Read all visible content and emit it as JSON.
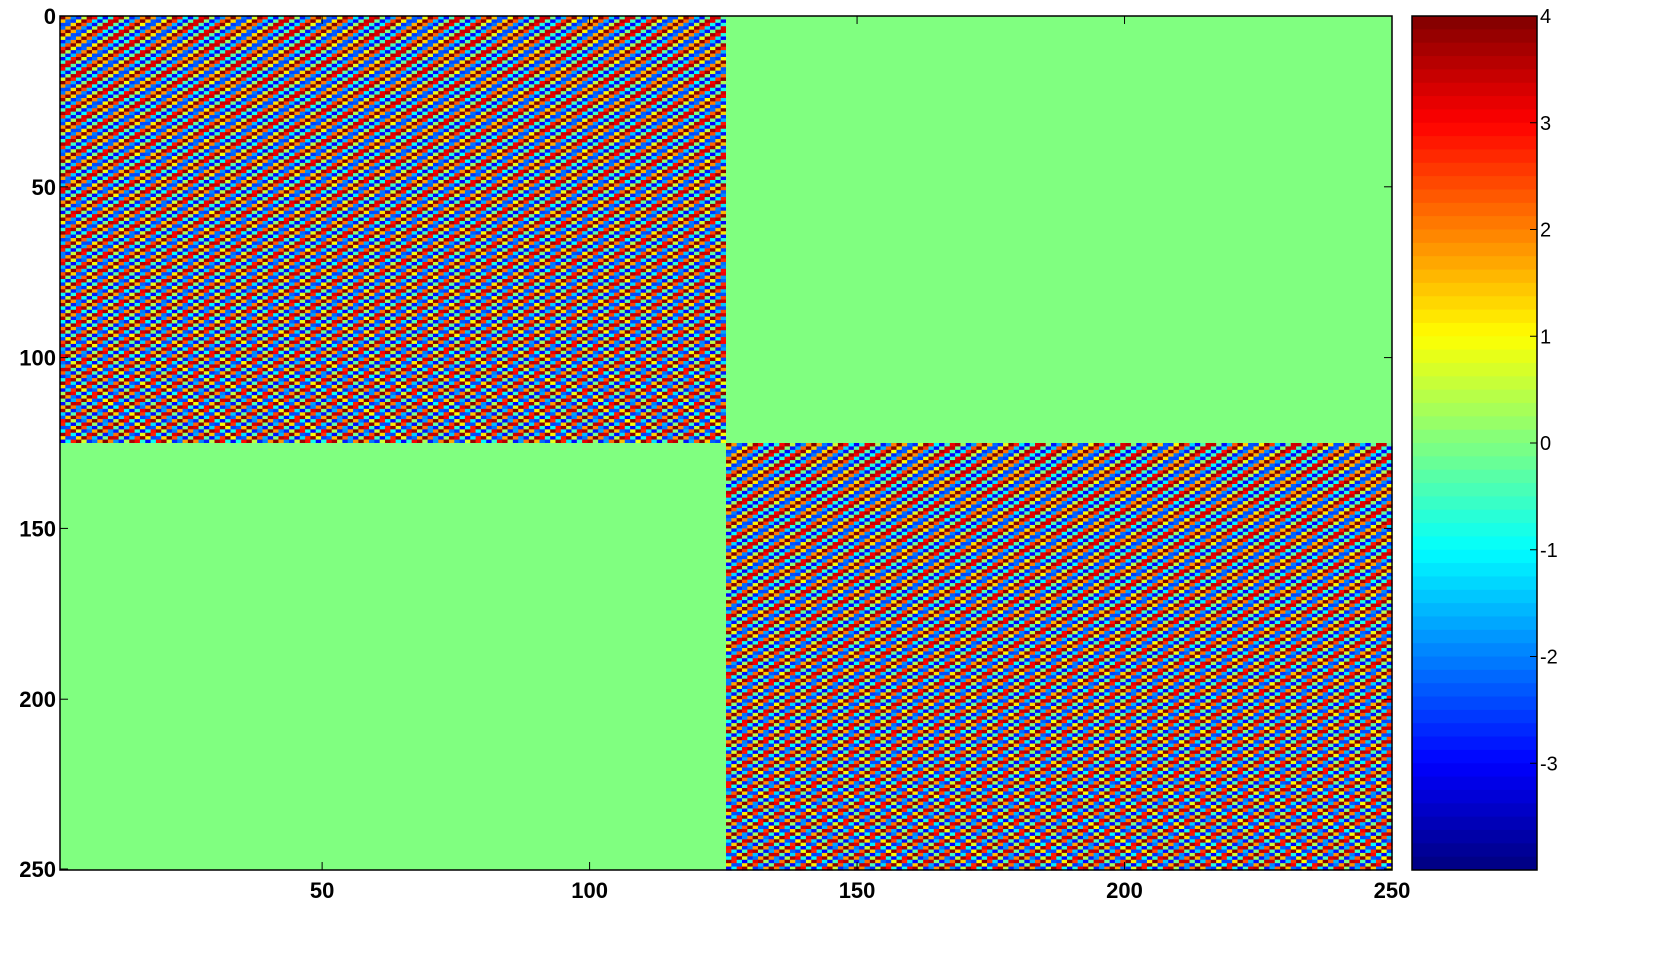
{
  "chart_data": {
    "type": "heatmap",
    "title": "",
    "xlabel": "",
    "ylabel": "",
    "matrix_size": [
      250,
      250
    ],
    "xlim": [
      1,
      250
    ],
    "ylim": [
      0,
      250
    ],
    "y_direction": "reversed",
    "x_ticks": [
      {
        "value": 50,
        "label": "50"
      },
      {
        "value": 100,
        "label": "100"
      },
      {
        "value": 150,
        "label": "150"
      },
      {
        "value": 200,
        "label": "200"
      },
      {
        "value": 250,
        "label": "250"
      }
    ],
    "y_ticks": [
      {
        "value": 0,
        "label": "0"
      },
      {
        "value": 50,
        "label": "50"
      },
      {
        "value": 100,
        "label": "100"
      },
      {
        "value": 150,
        "label": "150"
      },
      {
        "value": 200,
        "label": "200"
      },
      {
        "value": 250,
        "label": "250"
      }
    ],
    "blocks": [
      {
        "rows": [
          1,
          125
        ],
        "cols": [
          1,
          125
        ],
        "pattern": "diagonal-oscillating",
        "value_range": [
          -3,
          4
        ]
      },
      {
        "rows": [
          1,
          125
        ],
        "cols": [
          126,
          250
        ],
        "pattern": "constant",
        "value": 0
      },
      {
        "rows": [
          126,
          250
        ],
        "cols": [
          1,
          125
        ],
        "pattern": "constant",
        "value": 0
      },
      {
        "rows": [
          126,
          250
        ],
        "cols": [
          126,
          250
        ],
        "pattern": "diagonal-oscillating",
        "value_range": [
          -3,
          4
        ]
      }
    ],
    "colorbar": {
      "position": "right",
      "colormap": "jet",
      "levels": 64,
      "clim": [
        -4,
        4
      ],
      "ticks": [
        {
          "value": 4,
          "label": "4"
        },
        {
          "value": 3,
          "label": "3"
        },
        {
          "value": 2,
          "label": "2"
        },
        {
          "value": 1,
          "label": "1"
        },
        {
          "value": 0,
          "label": "0"
        },
        {
          "value": -1,
          "label": "-1"
        },
        {
          "value": -2,
          "label": "-2"
        },
        {
          "value": -3,
          "label": "-3"
        }
      ]
    },
    "grid": false,
    "legend": "none"
  }
}
